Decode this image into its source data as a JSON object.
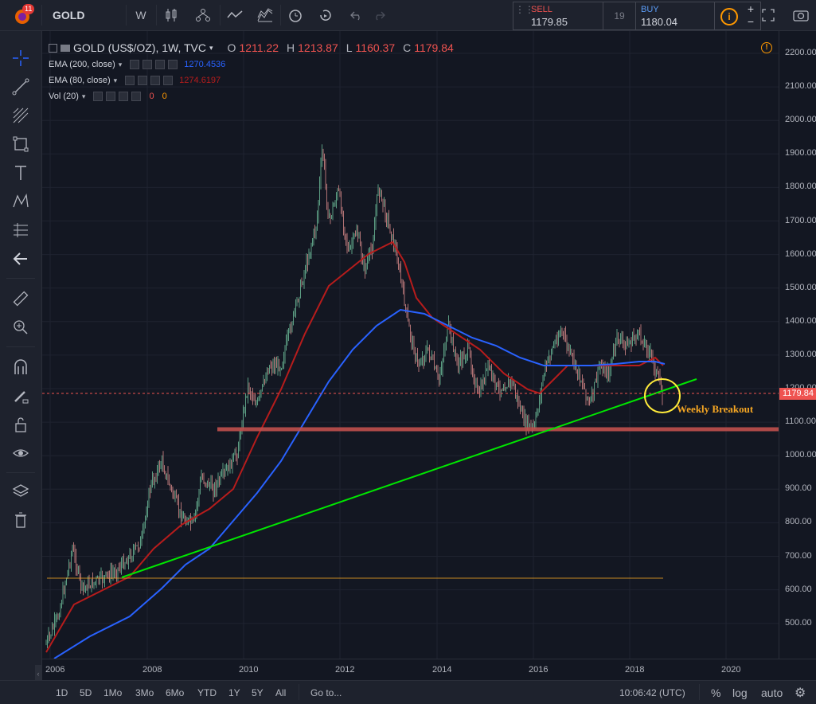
{
  "header": {
    "notification_count": "11",
    "symbol": "GOLD",
    "interval": "W"
  },
  "trade": {
    "sell_label": "SELL",
    "sell_price": "1179.85",
    "spread": "19",
    "buy_label": "BUY",
    "buy_price": "1180.04"
  },
  "legend": {
    "title": "GOLD (US$/OZ), 1W, TVC",
    "o_label": "O",
    "o_value": "1211.22",
    "h_label": "H",
    "h_value": "1213.87",
    "l_label": "L",
    "l_value": "1160.37",
    "c_label": "C",
    "c_value": "1179.84",
    "ema200_label": "EMA (200, close)",
    "ema200_value": "1270.4536",
    "ema80_label": "EMA (80, close)",
    "ema80_value": "1274.6197",
    "vol_label": "Vol (20)",
    "vol_value1": "0",
    "vol_value2": "0"
  },
  "annotation": {
    "text": "Weekly Breakout"
  },
  "price_axis": {
    "labels": [
      "2200.00",
      "2100.00",
      "2000.00",
      "1900.00",
      "1800.00",
      "1700.00",
      "1600.00",
      "1500.00",
      "1400.00",
      "1300.00",
      "1200.00",
      "1100.00",
      "1000.00",
      "900.00",
      "800.00",
      "700.00",
      "600.00",
      "500.00"
    ],
    "current_price": "1179.84"
  },
  "time_axis": {
    "labels": [
      "2006",
      "2008",
      "2010",
      "2012",
      "2014",
      "2016",
      "2018",
      "2020"
    ]
  },
  "bottom": {
    "ranges": [
      "1D",
      "5D",
      "1Mo",
      "3Mo",
      "6Mo",
      "YTD",
      "1Y",
      "5Y",
      "All"
    ],
    "goto": "Go to...",
    "clock": "10:06:42 (UTC)",
    "percent": "%",
    "log": "log",
    "auto": "auto"
  },
  "colors": {
    "background": "#131722",
    "ema200": "#2962ff",
    "ema80": "#b71c1c",
    "trendline": "#00e600",
    "support": "#c0504d",
    "annotation": "#f5a623",
    "circle": "#ffeb3b",
    "sell": "#ef5350",
    "buy": "#2962ff"
  }
}
